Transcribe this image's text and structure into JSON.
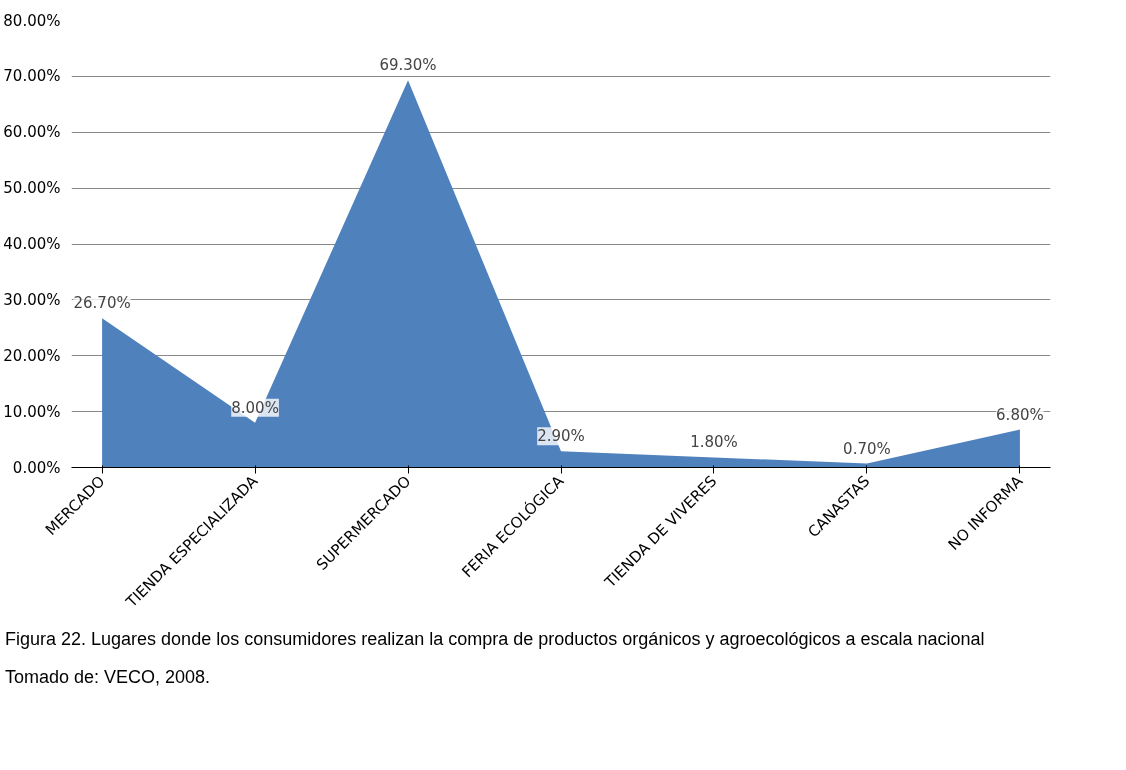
{
  "chart_data": {
    "type": "area",
    "categories": [
      "MERCADO",
      "TIENDA ESPECIALIZADA",
      "SUPERMERCADO",
      "FERIA ECOLÓGICA",
      "TIENDA DE VIVERES",
      "CANASTAS",
      "NO INFORMA"
    ],
    "series": [
      {
        "color": "#4f81bd",
        "values": [
          26.7,
          8.0,
          69.3,
          2.9,
          1.8,
          0.7,
          6.8
        ],
        "value_labels": [
          "26.70%",
          "8.00%",
          "69.30%",
          "2.90%",
          "1.80%",
          "0.70%",
          "6.80%"
        ]
      }
    ],
    "ylim": [
      0,
      80
    ],
    "yticks": [
      {
        "value": 0,
        "label": "0.00%"
      },
      {
        "value": 10,
        "label": "10.00%"
      },
      {
        "value": 20,
        "label": "20.00%"
      },
      {
        "value": 30,
        "label": "30.00%"
      },
      {
        "value": 40,
        "label": "40.00%"
      },
      {
        "value": 50,
        "label": "50.00%"
      },
      {
        "value": 60,
        "label": "60.00%"
      },
      {
        "value": 70,
        "label": "70.00%"
      },
      {
        "value": 80,
        "label": "80.00%"
      }
    ],
    "grid": "y",
    "annotations": [
      "Figura  22. Lugares donde los consumidores realizan la compra de productos orgánicos y agroecológicos a escala nacional",
      "Tomado de: VECO, 2008."
    ]
  }
}
